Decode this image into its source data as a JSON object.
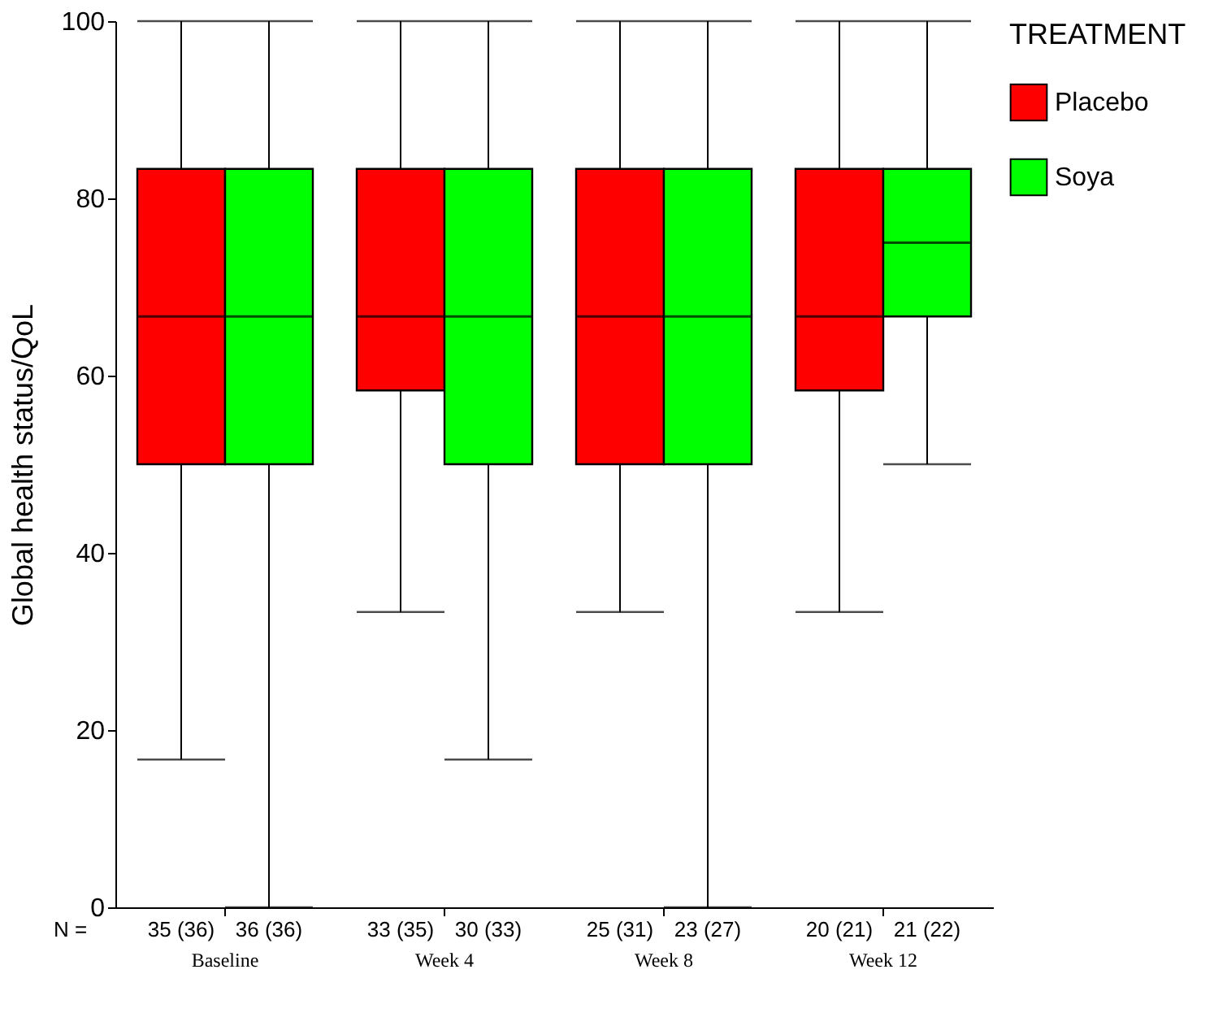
{
  "chart_data": {
    "type": "box",
    "ylabel": "Global health status/QoL",
    "legend_title": "TREATMENT",
    "legend": "right",
    "grid": false,
    "categories": [
      "Baseline",
      "Week 4",
      "Week 8",
      "Week 12"
    ],
    "ylim": [
      0,
      100
    ],
    "yticks": [
      0,
      20,
      40,
      60,
      80,
      100
    ],
    "series": [
      {
        "name": "Placebo",
        "color": "#ff0000",
        "boxes": [
          {
            "low": 16.67,
            "q1": 50,
            "median": 66.67,
            "q3": 83.33,
            "high": 100
          },
          {
            "low": 33.33,
            "q1": 58.33,
            "median": 66.67,
            "q3": 83.33,
            "high": 100
          },
          {
            "low": 33.33,
            "q1": 50,
            "median": 66.67,
            "q3": 83.33,
            "high": 100
          },
          {
            "low": 33.33,
            "q1": 58.33,
            "median": 66.67,
            "q3": 83.33,
            "high": 100
          }
        ]
      },
      {
        "name": "Soya",
        "color": "#00ff00",
        "boxes": [
          {
            "low": 0,
            "q1": 50,
            "median": 66.67,
            "q3": 83.33,
            "high": 100
          },
          {
            "low": 16.67,
            "q1": 50,
            "median": 66.67,
            "q3": 83.33,
            "high": 100
          },
          {
            "low": 0,
            "q1": 50,
            "median": 66.67,
            "q3": 83.33,
            "high": 100
          },
          {
            "low": 50,
            "q1": 66.67,
            "median": 75,
            "q3": 83.33,
            "high": 100
          }
        ]
      }
    ],
    "annotations": [
      "N =",
      "35 (36)",
      "36 (36)",
      "33 (35)",
      "30 (33)",
      "25 (31)",
      "23 (27)",
      "20 (21)",
      "21 (22)"
    ]
  }
}
